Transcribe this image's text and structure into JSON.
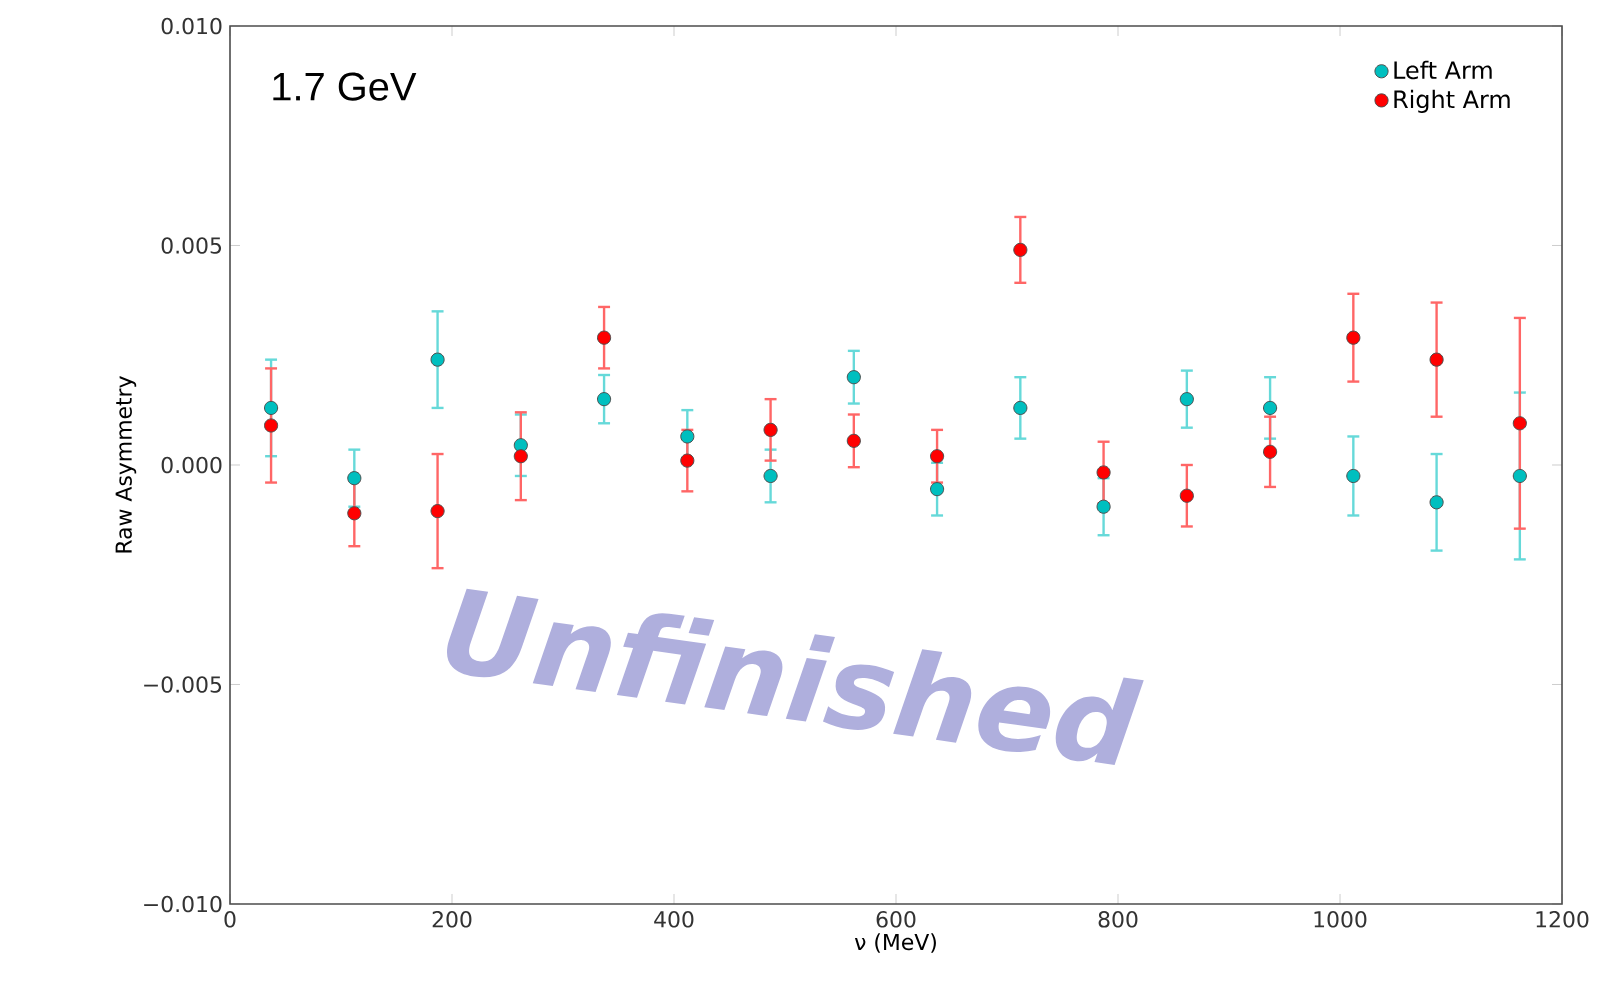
{
  "chart_data": {
    "type": "scatter",
    "xlabel": "ν (MeV)",
    "ylabel": "Raw Asymmetry",
    "x": [
      37,
      112,
      187,
      262,
      337,
      412,
      487,
      562,
      637,
      712,
      787,
      862,
      937,
      1012,
      1087,
      1162
    ],
    "series": [
      {
        "name": "Left Arm",
        "color": "#00bfbf",
        "values": [
          0.0013,
          -0.0003,
          0.0024,
          0.00045,
          0.0015,
          0.00065,
          -0.00025,
          0.002,
          -0.00055,
          0.0013,
          -0.00095,
          0.0015,
          0.0013,
          -0.00025,
          -0.00085,
          -0.00025
        ],
        "errors": [
          0.0011,
          0.00065,
          0.0011,
          0.0007,
          0.00055,
          0.0006,
          0.0006,
          0.0006,
          0.0006,
          0.0007,
          0.00065,
          0.00065,
          0.0007,
          0.0009,
          0.0011,
          0.0019
        ]
      },
      {
        "name": "Right Arm",
        "color": "#ff0000",
        "values": [
          0.0009,
          -0.0011,
          -0.00105,
          0.0002,
          0.0029,
          0.0001,
          0.0008,
          0.00055,
          0.0002,
          0.0049,
          -0.00017,
          -0.0007,
          0.0003,
          0.0029,
          0.0024,
          0.00095
        ],
        "errors": [
          0.0013,
          0.00075,
          0.0013,
          0.001,
          0.0007,
          0.0007,
          0.0007,
          0.0006,
          0.0006,
          0.00075,
          0.0007,
          0.0007,
          0.0008,
          0.001,
          0.0013,
          0.0024
        ]
      }
    ],
    "xlim": [
      0,
      1200
    ],
    "xticks": [
      0,
      200,
      400,
      600,
      800,
      1000,
      1200
    ],
    "ylim": [
      -0.01,
      0.01
    ],
    "yticks": [
      {
        "value": -0.01,
        "label": "−0.010"
      },
      {
        "value": -0.005,
        "label": "−0.005"
      },
      {
        "value": 0,
        "label": "0.000"
      },
      {
        "value": 0.005,
        "label": "0.005"
      },
      {
        "value": 0.01,
        "label": "0.010"
      }
    ],
    "legend": "top right",
    "marker": "circle",
    "grid": false,
    "annotations": [
      "1.7 GeV",
      "Unfinished"
    ]
  }
}
